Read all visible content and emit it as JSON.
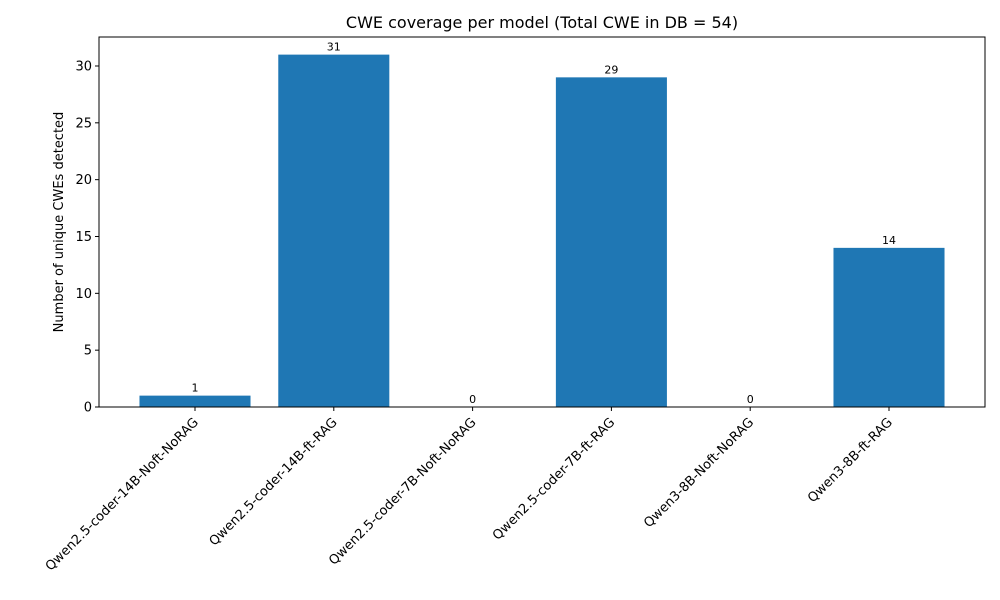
{
  "chart_data": {
    "type": "bar",
    "title": "CWE coverage per model (Total CWE in DB = 54)",
    "xlabel": "",
    "ylabel": "Number of unique CWEs detected",
    "categories": [
      "Qwen2.5-coder-14B-Noft-NoRAG",
      "Qwen2.5-coder-14B-ft-RAG",
      "Qwen2.5-coder-7B-Noft-NoRAG",
      "Qwen2.5-coder-7B-ft-RAG",
      "Qwen3-8B-Noft-NoRAG",
      "Qwen3-8B-ft-RAG"
    ],
    "values": [
      1,
      31,
      0,
      29,
      0,
      14
    ],
    "data_labels": [
      "1",
      "31",
      "0",
      "29",
      "0",
      "14"
    ],
    "ylim": [
      0,
      32.55
    ],
    "yticks": [
      0,
      5,
      10,
      15,
      20,
      25,
      30
    ],
    "grid": false,
    "bar_color": "#1f77b4"
  }
}
